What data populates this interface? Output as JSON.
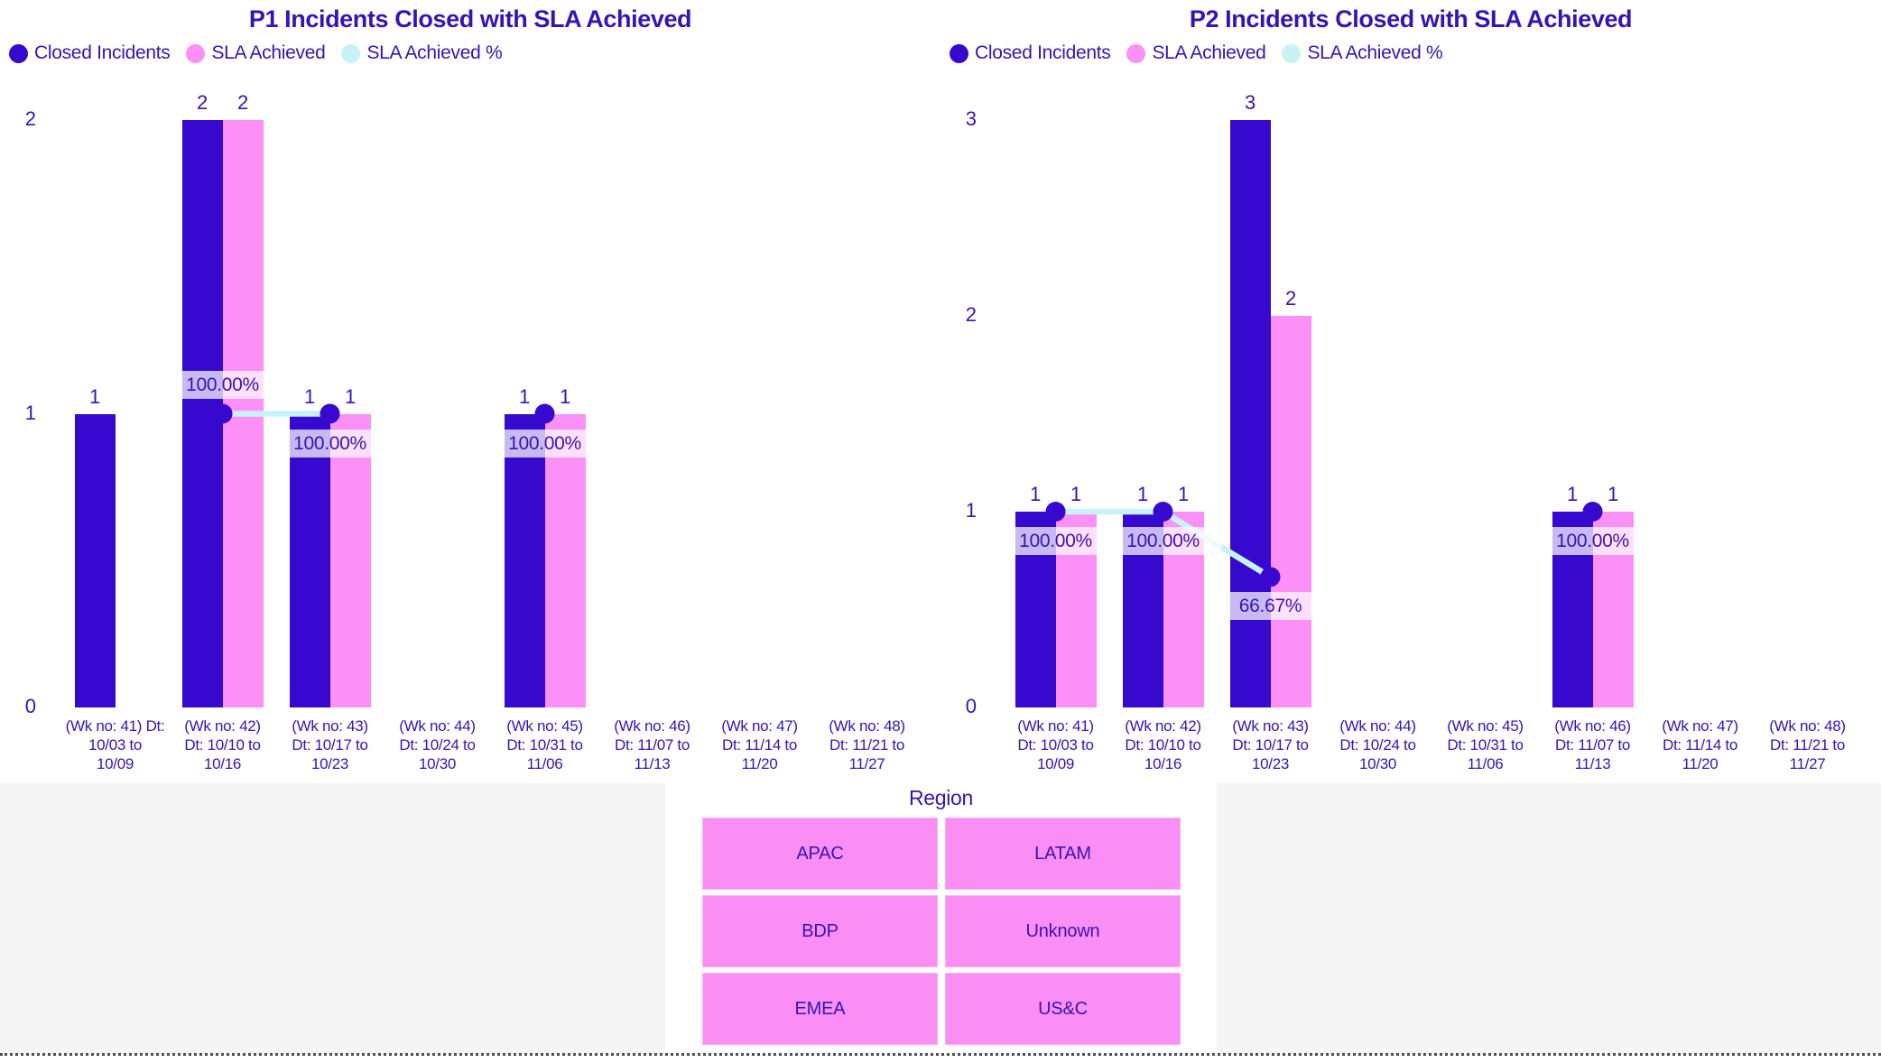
{
  "colors": {
    "closed_incidents": "#3708cd",
    "sla_achieved": "#fc90f6",
    "sla_percent_line": "#c7f3f7",
    "text": "#3614b4",
    "label_background": "rgba(255,255,255,0.72)",
    "footer_background": "#f5f5f5",
    "region_button": "#fb8ef5",
    "divider": "#4f4f4f"
  },
  "chart_data": [
    {
      "type": "bar",
      "title": "P1 Incidents Closed with SLA Achieved",
      "legend": [
        {
          "name": "Closed Incidents",
          "color": "#3708cd"
        },
        {
          "name": "SLA Achieved",
          "color": "#fc90f6"
        },
        {
          "name": "SLA Achieved %",
          "color": "#c7f3f7"
        }
      ],
      "ylim": [
        0,
        2
      ],
      "yticks": [
        0,
        1,
        2
      ],
      "grid": false,
      "legend_position": "top-left",
      "categories": [
        "(Wk no: 41) Dt:\n10/03 to\n10/09",
        "(Wk no: 42)\nDt: 10/10 to\n10/16",
        "(Wk no: 43)\nDt: 10/17 to\n10/23",
        "(Wk no: 44)\nDt: 10/24 to\n10/30",
        "(Wk no: 45)\nDt: 10/31 to\n11/06",
        "(Wk no: 46)\nDt: 11/07 to\n11/13",
        "(Wk no: 47)\nDt: 11/14 to\n11/20",
        "(Wk no: 48)\nDt: 11/21 to\n11/27"
      ],
      "series": [
        {
          "name": "Closed Incidents",
          "kind": "bar",
          "values": [
            1,
            2,
            1,
            null,
            1,
            null,
            null,
            null
          ]
        },
        {
          "name": "SLA Achieved",
          "kind": "bar",
          "values": [
            null,
            2,
            1,
            null,
            1,
            null,
            null,
            null
          ]
        },
        {
          "name": "SLA Achieved %",
          "kind": "line",
          "values": [
            null,
            100,
            100,
            null,
            100,
            null,
            null,
            null
          ],
          "labels": [
            null,
            "100.00%",
            "100.00%",
            null,
            "100.00%",
            null,
            null,
            null
          ],
          "label_pos": [
            null,
            "above",
            "below",
            null,
            "below",
            null,
            null,
            null
          ],
          "segments": [
            [
              1,
              2
            ]
          ]
        }
      ]
    },
    {
      "type": "bar",
      "title": "P2 Incidents Closed with SLA Achieved",
      "legend": [
        {
          "name": "Closed Incidents",
          "color": "#3708cd"
        },
        {
          "name": "SLA Achieved",
          "color": "#fc90f6"
        },
        {
          "name": "SLA Achieved %",
          "color": "#c7f3f7"
        }
      ],
      "ylim": [
        0,
        3
      ],
      "yticks": [
        0,
        1,
        2,
        3
      ],
      "grid": false,
      "legend_position": "top-left",
      "categories": [
        "(Wk no: 41)\nDt: 10/03 to\n10/09",
        "(Wk no: 42)\nDt: 10/10 to\n10/16",
        "(Wk no: 43)\nDt: 10/17 to\n10/23",
        "(Wk no: 44)\nDt: 10/24 to\n10/30",
        "(Wk no: 45)\nDt: 10/31 to\n11/06",
        "(Wk no: 46)\nDt: 11/07 to\n11/13",
        "(Wk no: 47)\nDt: 11/14 to\n11/20",
        "(Wk no: 48)\nDt: 11/21 to\n11/27"
      ],
      "series": [
        {
          "name": "Closed Incidents",
          "kind": "bar",
          "values": [
            1,
            1,
            3,
            null,
            null,
            1,
            null,
            null
          ]
        },
        {
          "name": "SLA Achieved",
          "kind": "bar",
          "values": [
            1,
            1,
            2,
            null,
            null,
            1,
            null,
            null
          ]
        },
        {
          "name": "SLA Achieved %",
          "kind": "line",
          "values": [
            100,
            100,
            66.67,
            null,
            null,
            100,
            null,
            null
          ],
          "labels": [
            "100.00%",
            "100.00%",
            "66.67%",
            null,
            null,
            "100.00%",
            null,
            null
          ],
          "label_pos": [
            "below",
            "below",
            "below",
            null,
            null,
            "below",
            null,
            null
          ],
          "segments": [
            [
              0,
              1
            ],
            [
              1,
              2
            ]
          ]
        }
      ]
    }
  ],
  "region_filter": {
    "title": "Region",
    "buttons": [
      "APAC",
      "LATAM",
      "BDP",
      "Unknown",
      "EMEA",
      "US&C"
    ]
  }
}
